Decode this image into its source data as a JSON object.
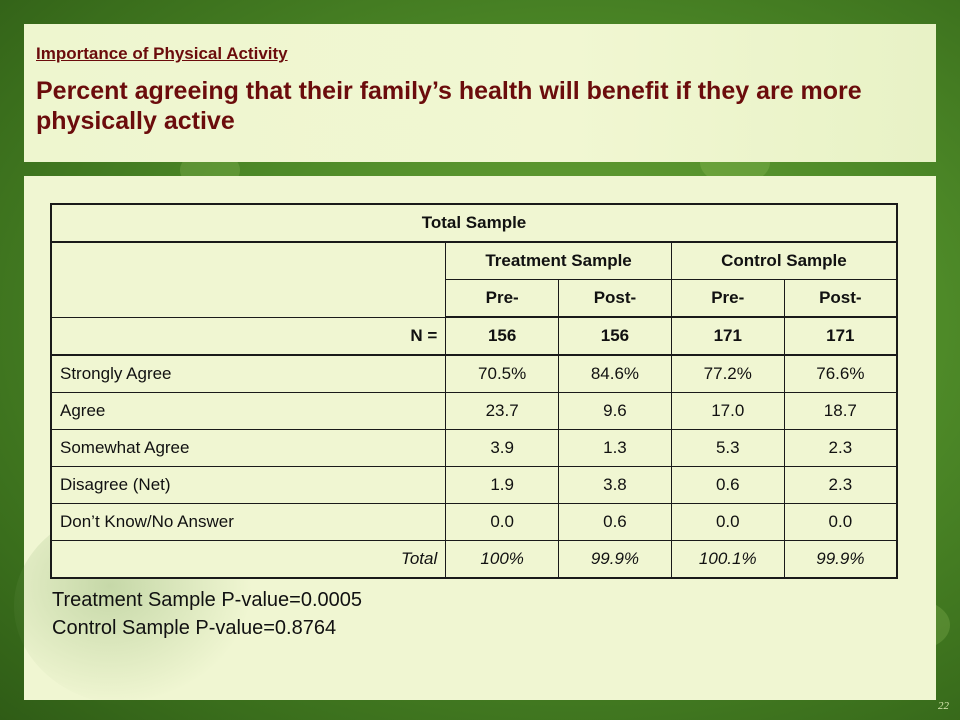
{
  "slide": {
    "section_title": "Importance of Physical Activity",
    "headline": "Percent agreeing that their family’s health will benefit if they are more physically active",
    "slide_number": "22"
  },
  "table": {
    "total_header": "Total Sample",
    "group_headers": [
      "Treatment Sample",
      "Control Sample"
    ],
    "sub_headers": [
      "Pre-",
      "Post-",
      "Pre-",
      "Post-"
    ],
    "n_label": "N =",
    "n_values": [
      "156",
      "156",
      "171",
      "171"
    ],
    "rows": [
      {
        "label": "Strongly Agree",
        "values": [
          "70.5%",
          "84.6%",
          "77.2%",
          "76.6%"
        ]
      },
      {
        "label": "Agree",
        "values": [
          "23.7",
          "9.6",
          "17.0",
          "18.7"
        ]
      },
      {
        "label": "Somewhat Agree",
        "values": [
          "3.9",
          "1.3",
          "5.3",
          "2.3"
        ]
      },
      {
        "label": "Disagree (Net)",
        "values": [
          "1.9",
          "3.8",
          "0.6",
          "2.3"
        ]
      },
      {
        "label": "Don’t Know/No Answer",
        "values": [
          "0.0",
          "0.6",
          "0.0",
          "0.0"
        ]
      }
    ],
    "total_label": "Total",
    "total_values": [
      "100%",
      "99.9%",
      "100.1%",
      "99.9%"
    ]
  },
  "p_values": {
    "treatment": "Treatment Sample P-value=0.0005",
    "control": "Control Sample P-value=0.8764"
  }
}
